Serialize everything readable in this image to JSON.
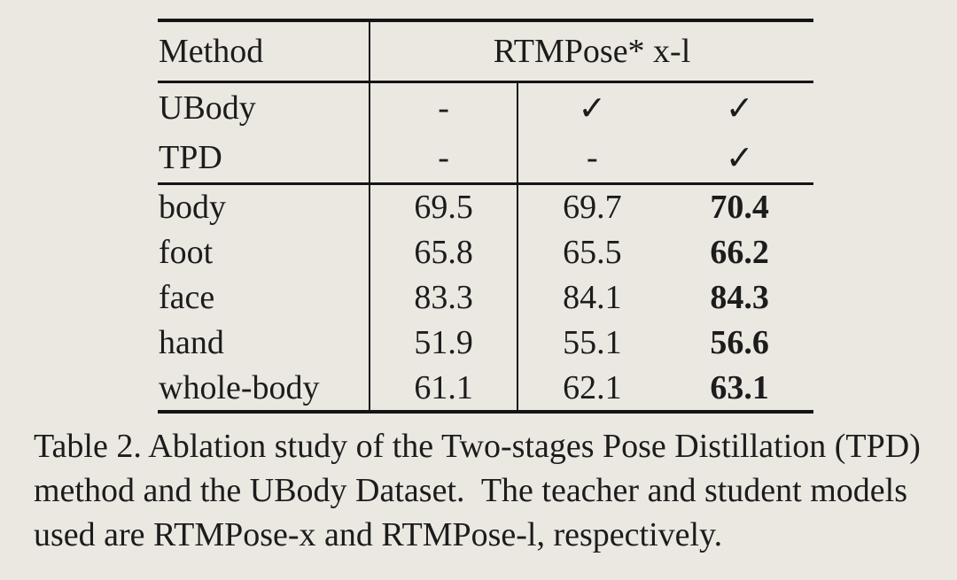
{
  "page": {
    "background_color": "#ebe8e2",
    "text_color": "#1c1c1c",
    "rule_color": "#141414"
  },
  "table": {
    "header": {
      "method_label": "Method",
      "group_label": "RTMPose* x-l"
    },
    "config_rows": [
      {
        "label": "UBody",
        "cells": [
          "-",
          "✓",
          "✓"
        ]
      },
      {
        "label": "TPD",
        "cells": [
          "-",
          "-",
          "✓"
        ]
      }
    ],
    "data_rows": [
      {
        "label": "body",
        "values": [
          "69.5",
          "69.7",
          "70.4"
        ]
      },
      {
        "label": "foot",
        "values": [
          "65.8",
          "65.5",
          "66.2"
        ]
      },
      {
        "label": "face",
        "values": [
          "83.3",
          "84.1",
          "84.3"
        ]
      },
      {
        "label": "hand",
        "values": [
          "51.9",
          "55.1",
          "56.6"
        ]
      },
      {
        "label": "whole-body",
        "values": [
          "61.1",
          "62.1",
          "63.1"
        ]
      }
    ]
  },
  "caption": {
    "lines": [
      "Table 2. Ablation study of the Two-stages Pose Distillation (TPD)",
      "method and the UBody Dataset.  The teacher and student models",
      "used are RTMPose-x and RTMPose-l, respectively."
    ]
  }
}
